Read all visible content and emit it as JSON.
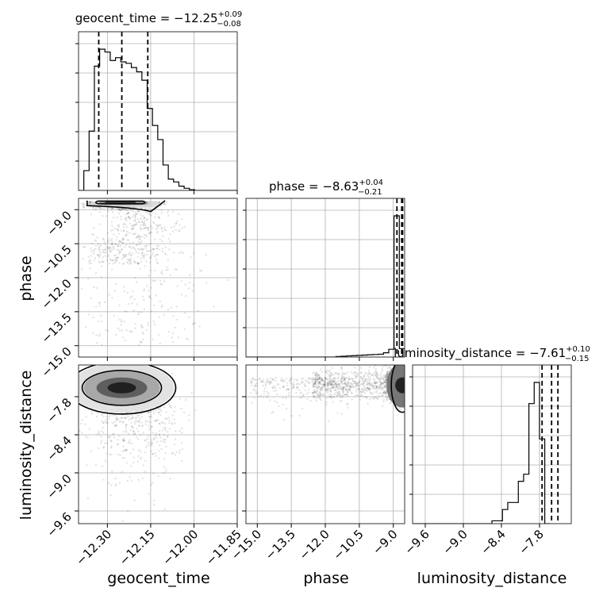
{
  "chart_data": {
    "type": "corner",
    "parameters": [
      "geocent_time",
      "phase",
      "luminosity_distance"
    ],
    "ranges": {
      "geocent_time": [
        -12.4,
        -11.85
      ],
      "phase": [
        -15.5,
        -8.5
      ],
      "luminosity_distance": [
        -9.8,
        -7.3
      ]
    },
    "ticks": {
      "geocent_time": [
        "-12.30",
        "-12.15",
        "-12.00",
        "-11.85"
      ],
      "phase": [
        "-15.0",
        "-13.5",
        "-12.0",
        "-10.5",
        "-9.0"
      ],
      "luminosity_distance": [
        "-9.6",
        "-9.0",
        "-8.4",
        "-7.8"
      ]
    },
    "tick_values": {
      "geocent_time": [
        -12.3,
        -12.15,
        -12.0,
        -11.85
      ],
      "phase": [
        -15.0,
        -13.5,
        -12.0,
        -10.5,
        -9.0
      ],
      "luminosity_distance": [
        -9.6,
        -9.0,
        -8.4,
        -7.8
      ]
    },
    "axis_labels": {
      "geocent_time": "geocent_time",
      "phase": "phase",
      "luminosity_distance": "luminosity_distance"
    },
    "titles": [
      {
        "param": "geocent_time",
        "prefix": "geocent_time = ",
        "median": "−12.25",
        "plus": "+0.09",
        "minus": "−0.08"
      },
      {
        "param": "phase",
        "prefix": "phase = ",
        "median": "−8.63",
        "plus": "+0.04",
        "minus": "−0.21"
      },
      {
        "param": "luminosity_distance",
        "prefix": "luminosity_distance = ",
        "median": "−7.61",
        "plus": "+0.10",
        "minus": "−0.15"
      }
    ],
    "quantile_lines": {
      "geocent_time": [
        -12.33,
        -12.25,
        -12.16
      ],
      "phase": [
        -8.84,
        -8.63,
        -8.59
      ],
      "luminosity_distance": [
        -7.76,
        -7.61,
        -7.51
      ]
    },
    "histograms": {
      "geocent_time": {
        "bin_start": -12.4,
        "bin_width": 0.0183,
        "counts": [
          0,
          0.14,
          0.42,
          0.88,
          1.0,
          0.98,
          0.92,
          0.94,
          0.91,
          0.9,
          0.87,
          0.84,
          0.78,
          0.58,
          0.46,
          0.36,
          0.18,
          0.08,
          0.06,
          0.03,
          0.015,
          0.005,
          0,
          0,
          0,
          0,
          0,
          0,
          0,
          0
        ]
      },
      "phase": {
        "bin_start": -15.5,
        "bin_width": 0.2333,
        "counts": [
          0,
          0,
          0,
          0,
          0,
          0,
          0,
          0,
          0,
          0,
          0,
          0,
          0,
          0,
          0,
          0,
          0,
          0.004,
          0.006,
          0.008,
          0.01,
          0.012,
          0.014,
          0.016,
          0.018,
          0.02,
          0.03,
          0.055,
          1.0,
          0.06
        ]
      },
      "luminosity_distance": {
        "bin_start": -9.8,
        "bin_width": 0.0833,
        "counts": [
          0,
          0,
          0,
          0,
          0,
          0,
          0,
          0,
          0,
          0,
          0,
          0,
          0,
          0,
          0,
          0.02,
          0.02,
          0.1,
          0.15,
          0.15,
          0.3,
          0.35,
          0.85,
          1.0,
          0.6,
          0
        ]
      }
    },
    "grid": true
  }
}
